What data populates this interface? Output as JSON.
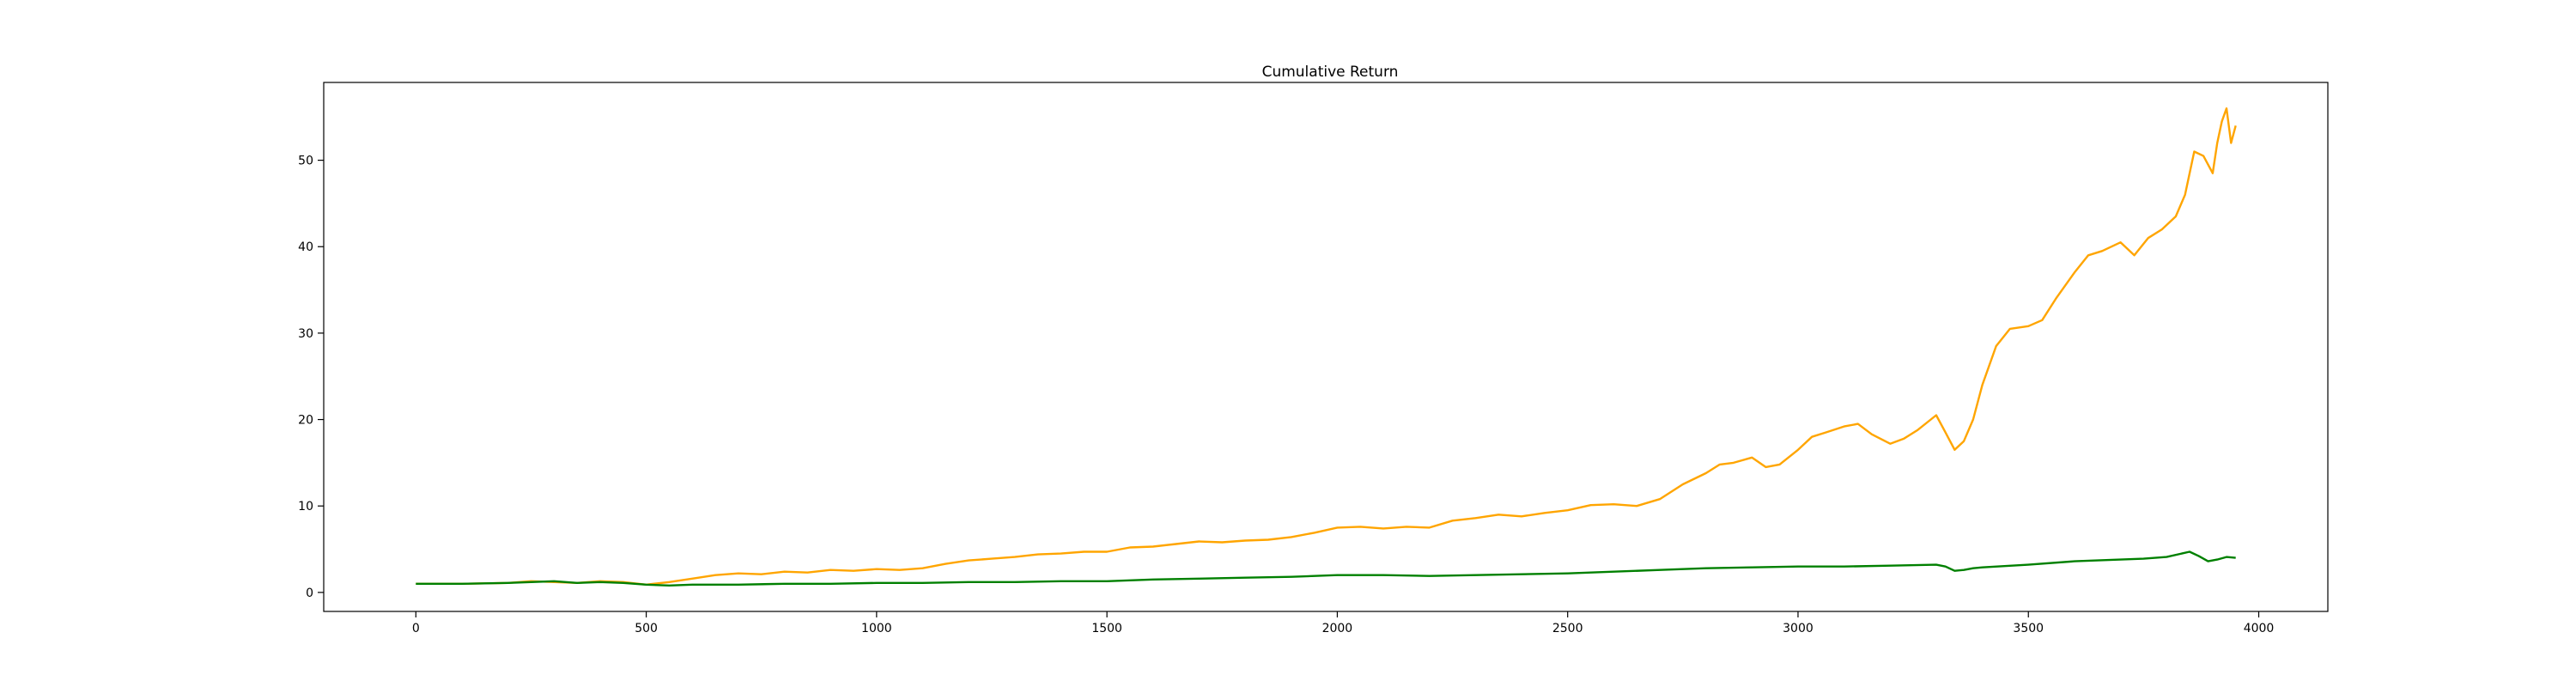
{
  "chart_data": {
    "type": "line",
    "title": "Cumulative Return",
    "xlabel": "",
    "ylabel": "",
    "xlim": [
      -200,
      4150
    ],
    "ylim": [
      -2.2,
      59
    ],
    "xticks": [
      0,
      500,
      1000,
      1500,
      2000,
      2500,
      3000,
      3500,
      4000
    ],
    "yticks": [
      0,
      10,
      20,
      30,
      40,
      50
    ],
    "grid": false,
    "legend": "none",
    "series": [
      {
        "color": "#ffa500",
        "x": [
          0,
          100,
          200,
          250,
          300,
          350,
          400,
          450,
          500,
          550,
          600,
          650,
          700,
          750,
          800,
          850,
          900,
          950,
          1000,
          1050,
          1100,
          1150,
          1200,
          1250,
          1300,
          1350,
          1400,
          1450,
          1500,
          1550,
          1600,
          1650,
          1700,
          1750,
          1800,
          1850,
          1900,
          1950,
          2000,
          2050,
          2100,
          2150,
          2200,
          2250,
          2300,
          2350,
          2400,
          2450,
          2500,
          2550,
          2600,
          2650,
          2700,
          2750,
          2800,
          2830,
          2860,
          2900,
          2930,
          2960,
          3000,
          3030,
          3060,
          3100,
          3130,
          3160,
          3200,
          3230,
          3260,
          3300,
          3320,
          3340,
          3360,
          3380,
          3400,
          3430,
          3460,
          3500,
          3530,
          3560,
          3600,
          3630,
          3660,
          3700,
          3730,
          3760,
          3790,
          3820,
          3840,
          3860,
          3880,
          3900,
          3910,
          3920,
          3930,
          3940,
          3950
        ],
        "y": [
          1.0,
          1.0,
          1.1,
          1.3,
          1.2,
          1.1,
          1.3,
          1.2,
          0.9,
          1.2,
          1.6,
          2.0,
          2.2,
          2.1,
          2.4,
          2.3,
          2.6,
          2.5,
          2.7,
          2.6,
          2.8,
          3.3,
          3.7,
          3.9,
          4.1,
          4.4,
          4.5,
          4.7,
          4.7,
          5.2,
          5.3,
          5.6,
          5.9,
          5.8,
          6.0,
          6.1,
          6.4,
          6.9,
          7.5,
          7.6,
          7.4,
          7.6,
          7.5,
          8.3,
          8.6,
          9.0,
          8.8,
          9.2,
          9.5,
          10.1,
          10.2,
          10.0,
          10.8,
          12.5,
          13.8,
          14.8,
          15.0,
          15.6,
          14.5,
          14.8,
          16.5,
          18.0,
          18.5,
          19.2,
          19.5,
          18.3,
          17.2,
          17.8,
          18.8,
          20.5,
          18.5,
          16.5,
          17.5,
          20.0,
          24.0,
          28.5,
          30.5,
          30.8,
          31.5,
          34.0,
          37.0,
          39.0,
          39.5,
          40.5,
          39.0,
          41.0,
          42.0,
          43.5,
          46.0,
          51.0,
          50.5,
          48.5,
          52.0,
          54.5,
          56.0,
          52.0,
          54.0
        ]
      },
      {
        "color": "#008000",
        "x": [
          0,
          100,
          200,
          250,
          300,
          350,
          400,
          450,
          500,
          550,
          600,
          700,
          800,
          900,
          1000,
          1100,
          1200,
          1300,
          1400,
          1500,
          1600,
          1700,
          1800,
          1900,
          2000,
          2100,
          2200,
          2300,
          2400,
          2500,
          2600,
          2700,
          2800,
          2900,
          3000,
          3100,
          3200,
          3300,
          3320,
          3340,
          3360,
          3380,
          3400,
          3500,
          3600,
          3700,
          3750,
          3800,
          3850,
          3870,
          3890,
          3910,
          3930,
          3950
        ],
        "y": [
          1.0,
          1.0,
          1.1,
          1.2,
          1.3,
          1.1,
          1.2,
          1.1,
          0.9,
          0.8,
          0.9,
          0.9,
          1.0,
          1.0,
          1.1,
          1.1,
          1.2,
          1.2,
          1.3,
          1.3,
          1.5,
          1.6,
          1.7,
          1.8,
          2.0,
          2.0,
          1.9,
          2.0,
          2.1,
          2.2,
          2.4,
          2.6,
          2.8,
          2.9,
          3.0,
          3.0,
          3.1,
          3.2,
          3.0,
          2.5,
          2.6,
          2.8,
          2.9,
          3.2,
          3.6,
          3.8,
          3.9,
          4.1,
          4.7,
          4.2,
          3.6,
          3.8,
          4.1,
          4.0
        ]
      }
    ]
  }
}
